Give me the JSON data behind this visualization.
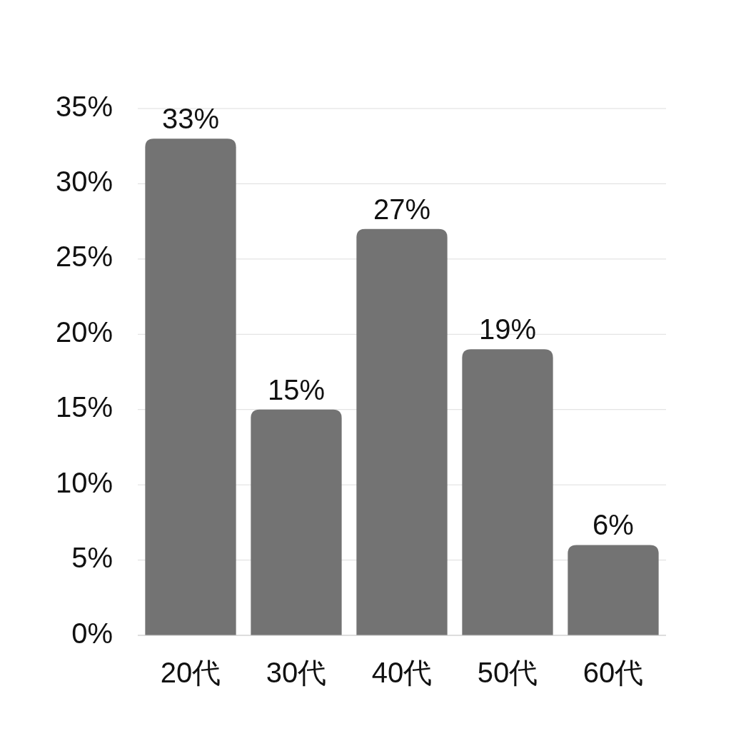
{
  "chart_data": {
    "type": "bar",
    "categories": [
      "20代",
      "30代",
      "40代",
      "50代",
      "60代"
    ],
    "values": [
      33,
      15,
      27,
      19,
      6
    ],
    "color": "#737373",
    "value_labels": [
      "33%",
      "15%",
      "27%",
      "19%",
      "6%"
    ],
    "ylim": [
      0,
      35
    ],
    "yticks": [
      {
        "value": 0,
        "label": "0%"
      },
      {
        "value": 5,
        "label": "5%"
      },
      {
        "value": 10,
        "label": "10%"
      },
      {
        "value": 15,
        "label": "15%"
      },
      {
        "value": 20,
        "label": "20%"
      },
      {
        "value": 25,
        "label": "25%"
      },
      {
        "value": 30,
        "label": "30%"
      },
      {
        "value": 35,
        "label": "35%"
      }
    ],
    "grid": "y"
  }
}
